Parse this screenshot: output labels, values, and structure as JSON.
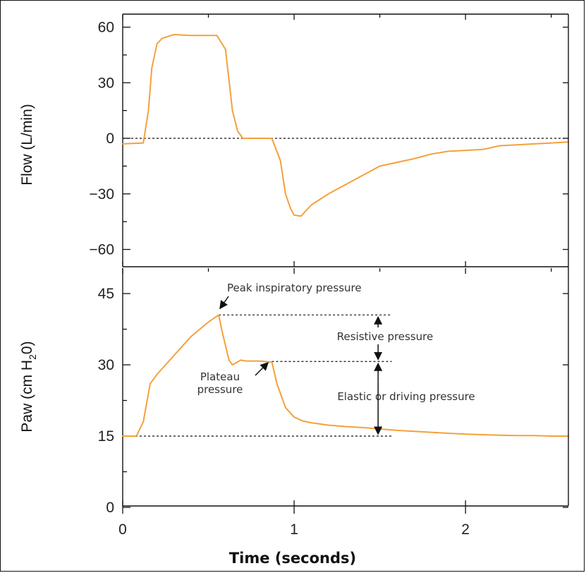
{
  "chart_data": [
    {
      "type": "line",
      "ylabel": "Flow (L/min)",
      "ylim": [
        -70,
        63
      ],
      "xlim": [
        0,
        2.6
      ],
      "yticks": [
        60,
        30,
        0,
        -30,
        -60
      ],
      "ytick_labels": [
        "60",
        "30",
        "0",
        "−30",
        "−60"
      ],
      "xticks": [
        0,
        1,
        2
      ],
      "reference_line": {
        "y": 0,
        "style": "dashed"
      },
      "series": [
        {
          "color": "#f5a03c",
          "x": [
            0,
            0.12,
            0.15,
            0.17,
            0.2,
            0.23,
            0.3,
            0.4,
            0.5,
            0.55,
            0.6,
            0.64,
            0.67,
            0.7,
            0.73,
            0.87,
            0.92,
            0.95,
            0.98,
            1.0,
            1.04,
            1.1,
            1.2,
            1.3,
            1.4,
            1.5,
            1.6,
            1.7,
            1.8,
            1.9,
            2.0,
            2.1,
            2.2,
            2.3,
            2.4,
            2.5,
            2.6
          ],
          "y": [
            -3,
            -2.5,
            15,
            38,
            51,
            54,
            56,
            55.5,
            55.5,
            55.5,
            48,
            15,
            4,
            0,
            0,
            0,
            -12,
            -30,
            -38,
            -41.5,
            -42,
            -36,
            -30,
            -25,
            -20,
            -15,
            -13,
            -11,
            -8.5,
            -7,
            -6.5,
            -6,
            -4,
            -3.5,
            -3,
            -2.5,
            -2
          ]
        }
      ]
    },
    {
      "type": "line",
      "ylabel": "Paw (cm H2O)",
      "ylim": [
        0,
        49
      ],
      "xlim": [
        0,
        2.6
      ],
      "yticks": [
        45,
        30,
        15,
        0
      ],
      "ytick_labels": [
        "45",
        "30",
        "15",
        "0"
      ],
      "xticks": [
        0,
        1,
        2
      ],
      "xtick_labels": [
        "0",
        "1",
        "2"
      ],
      "xlabel": "Time (seconds)",
      "series": [
        {
          "color": "#f5a03c",
          "x": [
            0,
            0.08,
            0.12,
            0.16,
            0.2,
            0.25,
            0.3,
            0.4,
            0.5,
            0.56,
            0.58,
            0.62,
            0.64,
            0.69,
            0.72,
            0.8,
            0.87,
            0.9,
            0.95,
            1.0,
            1.05,
            1.1,
            1.2,
            1.3,
            1.4,
            1.5,
            1.6,
            1.7,
            1.8,
            1.9,
            2.0,
            2.1,
            2.2,
            2.3,
            2.4,
            2.5,
            2.6
          ],
          "y": [
            15,
            15,
            18,
            26,
            28,
            30,
            32,
            36,
            39,
            40.5,
            37,
            31,
            30,
            31,
            30.8,
            30.8,
            30.6,
            26,
            21,
            19,
            18.2,
            17.8,
            17.3,
            17,
            16.8,
            16.5,
            16.2,
            16,
            15.8,
            15.6,
            15.4,
            15.3,
            15.2,
            15.1,
            15.1,
            15,
            15
          ]
        }
      ],
      "reference_lines": [
        {
          "y": 40.5,
          "style": "dashed"
        },
        {
          "y": 30.7,
          "style": "dashed"
        },
        {
          "y": 15,
          "style": "dashed"
        }
      ],
      "annotations": [
        {
          "text": "Peak inspiratory pressure"
        },
        {
          "text": "Plateau"
        },
        {
          "text": "pressure"
        },
        {
          "text": "Resistive pressure"
        },
        {
          "text": "Elastic or driving pressure"
        }
      ]
    }
  ],
  "sub": "2",
  "ylabel_parts": {
    "flow": "Flow (L/min)",
    "paw_prefix": "Paw (cm H",
    "paw_suffix": "0)"
  }
}
